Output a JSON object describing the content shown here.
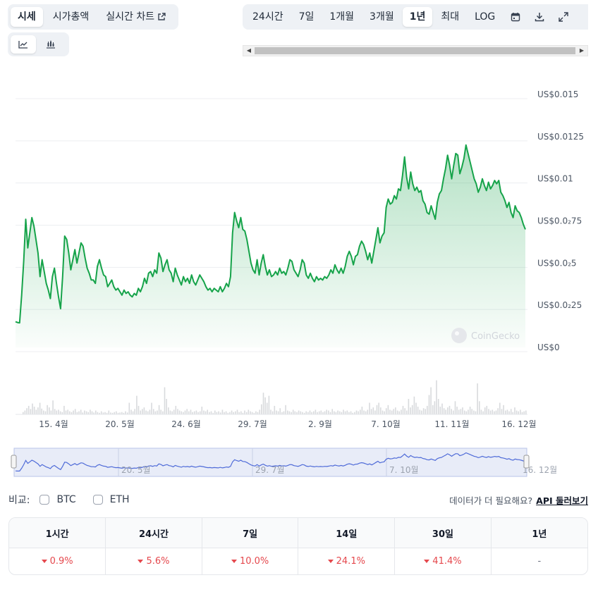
{
  "view_tabs": [
    {
      "label": "시세",
      "active": true
    },
    {
      "label": "시가총액",
      "active": false
    },
    {
      "label": "실시간 차트",
      "active": false,
      "icon": "external-link-icon"
    }
  ],
  "chart_type_buttons": [
    {
      "name": "line-chart-icon",
      "active": true
    },
    {
      "name": "candlestick-chart-icon",
      "active": false
    }
  ],
  "range_tabs": [
    {
      "label": "24시간",
      "active": false
    },
    {
      "label": "7일",
      "active": false
    },
    {
      "label": "1개월",
      "active": false
    },
    {
      "label": "3개월",
      "active": false
    },
    {
      "label": "1년",
      "active": true
    },
    {
      "label": "최대",
      "active": false
    },
    {
      "label": "LOG",
      "active": false
    }
  ],
  "range_icons": [
    "calendar-icon",
    "download-icon",
    "expand-icon"
  ],
  "chart": {
    "watermark": "CoinGecko",
    "line_color": "#16a34a",
    "navigator_color": "#4f6bd8"
  },
  "chart_data": {
    "type": "area",
    "y_axis_labels": [
      "US$0.015",
      "US$0.0125",
      "US$0.01",
      "US$0.0₂75",
      "US$0.0₂5",
      "US$0.0₂25",
      "US$0"
    ],
    "y_ticks": [
      0.015,
      0.0125,
      0.01,
      0.0075,
      0.005,
      0.0025,
      0
    ],
    "ylim": [
      0,
      0.015
    ],
    "x_labels": [
      "15. 4월",
      "20. 5월",
      "24. 6월",
      "29. 7월",
      "2. 9월",
      "7. 10월",
      "11. 11월",
      "16. 12월"
    ],
    "navigator_x_labels": [
      "20. 5월",
      "29. 7월",
      "7. 10월",
      "16. 12월"
    ],
    "price": [
      0.00153,
      0.00148,
      0.00146,
      0.0031,
      0.0051,
      0.0076,
      0.0059,
      0.0068,
      0.0077,
      0.0072,
      0.0064,
      0.0056,
      0.0042,
      0.0052,
      0.0045,
      0.0038,
      0.0034,
      0.0029,
      0.0042,
      0.0047,
      0.0038,
      0.003,
      0.0023,
      0.0042,
      0.0066,
      0.0064,
      0.0056,
      0.0046,
      0.0052,
      0.0058,
      0.005,
      0.0056,
      0.0062,
      0.006,
      0.0053,
      0.0047,
      0.0044,
      0.004,
      0.004,
      0.0038,
      0.0048,
      0.0052,
      0.0047,
      0.0043,
      0.0042,
      0.0036,
      0.0038,
      0.004,
      0.0036,
      0.0034,
      0.0035,
      0.0033,
      0.0031,
      0.0034,
      0.0032,
      0.0033,
      0.0031,
      0.003,
      0.0032,
      0.0031,
      0.0035,
      0.0033,
      0.0036,
      0.0041,
      0.0038,
      0.0044,
      0.0045,
      0.0042,
      0.0046,
      0.0044,
      0.0056,
      0.0053,
      0.0045,
      0.0049,
      0.0052,
      0.0046,
      0.0044,
      0.0039,
      0.0047,
      0.0043,
      0.004,
      0.0037,
      0.0042,
      0.0039,
      0.0041,
      0.0038,
      0.0043,
      0.0039,
      0.0037,
      0.004,
      0.0043,
      0.0041,
      0.0039,
      0.0036,
      0.0034,
      0.0035,
      0.0033,
      0.0035,
      0.0034,
      0.0033,
      0.0036,
      0.0033,
      0.0035,
      0.0038,
      0.0036,
      0.0042,
      0.0068,
      0.008,
      0.0075,
      0.0071,
      0.0077,
      0.007,
      0.0069,
      0.0064,
      0.0057,
      0.005,
      0.0046,
      0.0044,
      0.0052,
      0.0043,
      0.005,
      0.0055,
      0.0048,
      0.0043,
      0.0046,
      0.0042,
      0.0043,
      0.0045,
      0.0043,
      0.0047,
      0.0044,
      0.0045,
      0.0043,
      0.0047,
      0.0052,
      0.0051,
      0.0046,
      0.0044,
      0.0042,
      0.0046,
      0.0052,
      0.005,
      0.0043,
      0.0041,
      0.0044,
      0.0041,
      0.0039,
      0.0042,
      0.004,
      0.0041,
      0.004,
      0.0042,
      0.0041,
      0.0043,
      0.0046,
      0.0044,
      0.0049,
      0.0046,
      0.0044,
      0.0047,
      0.0044,
      0.0048,
      0.0054,
      0.0057,
      0.0054,
      0.0049,
      0.0054,
      0.0055,
      0.006,
      0.0063,
      0.0061,
      0.0057,
      0.0052,
      0.0056,
      0.005,
      0.0057,
      0.0064,
      0.0071,
      0.0062,
      0.0066,
      0.0068,
      0.0083,
      0.0088,
      0.0085,
      0.0086,
      0.009,
      0.0088,
      0.0094,
      0.0093,
      0.0102,
      0.0113,
      0.0101,
      0.0094,
      0.0104,
      0.0097,
      0.0093,
      0.0095,
      0.0092,
      0.0093,
      0.0087,
      0.0085,
      0.008,
      0.0079,
      0.0084,
      0.008,
      0.0076,
      0.0086,
      0.0091,
      0.0093,
      0.01,
      0.0106,
      0.0114,
      0.0108,
      0.01,
      0.0108,
      0.0115,
      0.0114,
      0.0103,
      0.0107,
      0.0112,
      0.012,
      0.0115,
      0.011,
      0.0105,
      0.01,
      0.0097,
      0.0092,
      0.0095,
      0.01,
      0.0096,
      0.0093,
      0.0098,
      0.0094,
      0.0096,
      0.0099,
      0.0097,
      0.0099,
      0.0092,
      0.009,
      0.0087,
      0.0083,
      0.0086,
      0.008,
      0.0077,
      0.0084,
      0.0081,
      0.008,
      0.0077,
      0.0073,
      0.007
    ],
    "volume": [
      0.06,
      0.1,
      0.16,
      0.22,
      0.14,
      0.28,
      0.2,
      0.12,
      0.18,
      0.3,
      0.15,
      0.1,
      0.08,
      0.24,
      0.18,
      0.1,
      0.36,
      0.14,
      0.1,
      0.12,
      0.08,
      0.06,
      0.22,
      0.1,
      0.12,
      0.08,
      0.06,
      0.1,
      0.14,
      0.06,
      0.08,
      0.12,
      0.05,
      0.1,
      0.08,
      0.06,
      0.12,
      0.08,
      0.05,
      0.1,
      0.06,
      0.04,
      0.08,
      0.05,
      0.06,
      0.04,
      0.1,
      0.05,
      0.04,
      0.06,
      0.08,
      0.04,
      0.05,
      0.06,
      0.04,
      0.08,
      0.05,
      0.3,
      0.12,
      0.08,
      0.14,
      0.48,
      0.22,
      0.1,
      0.14,
      0.18,
      0.1,
      0.08,
      0.12,
      0.3,
      0.14,
      0.08,
      0.1,
      0.24,
      0.12,
      0.08,
      0.7,
      0.4,
      0.18,
      0.1,
      0.08,
      0.12,
      0.22,
      0.14,
      0.1,
      0.08,
      0.06,
      0.1,
      0.14,
      0.08,
      0.12,
      0.06,
      0.08,
      0.1,
      0.06,
      0.08,
      0.2,
      0.1,
      0.08,
      0.12,
      0.06,
      0.08,
      0.04,
      0.1,
      0.06,
      0.08,
      0.05,
      0.12,
      0.06,
      0.08,
      0.04,
      0.06,
      0.1,
      0.06,
      0.08,
      0.12,
      0.06,
      0.08,
      0.04,
      0.1,
      0.06,
      0.12,
      0.08,
      0.06,
      0.04,
      0.08,
      0.06,
      0.12,
      0.26,
      0.56,
      0.44,
      0.3,
      0.48,
      0.12,
      0.08,
      0.22,
      0.1,
      0.08,
      0.16,
      0.06,
      0.08,
      0.24,
      0.1,
      0.08,
      0.06,
      0.12,
      0.08,
      0.06,
      0.1,
      0.08,
      0.06,
      0.04,
      0.08,
      0.06,
      0.1,
      0.06,
      0.08,
      0.12,
      0.06,
      0.08,
      0.1,
      0.06,
      0.08,
      0.12,
      0.1,
      0.06,
      0.14,
      0.08,
      0.06,
      0.1,
      0.08,
      0.06,
      0.12,
      0.08,
      0.1,
      0.06,
      0.08,
      0.04,
      0.06,
      0.1,
      0.08,
      0.12,
      0.2,
      0.1,
      0.08,
      0.12,
      0.3,
      0.14,
      0.18,
      0.1,
      0.24,
      0.3,
      0.18,
      0.1,
      0.08,
      0.16,
      0.24,
      0.12,
      0.1,
      0.14,
      0.18,
      0.1,
      0.08,
      0.12,
      0.22,
      0.16,
      0.1,
      0.4,
      0.18,
      0.24,
      0.46,
      0.3,
      0.2,
      0.12,
      0.1,
      0.16,
      0.14,
      0.22,
      0.5,
      0.7,
      0.24,
      0.34,
      0.88,
      0.4,
      0.2,
      0.28,
      0.16,
      0.12,
      0.18,
      0.22,
      0.14,
      0.1,
      0.34,
      0.2,
      0.12,
      0.14,
      0.18,
      0.1,
      0.08,
      0.12,
      0.2,
      0.14,
      0.1,
      0.08,
      0.8,
      0.34,
      0.12,
      0.08,
      0.18,
      0.22,
      0.14,
      0.1,
      0.12,
      0.08,
      0.1,
      0.16,
      0.3,
      0.14,
      0.24,
      0.1,
      0.12,
      0.08,
      0.14,
      0.06,
      0.18,
      0.1,
      0.08,
      0.12,
      0.06,
      0.08,
      0.1
    ]
  },
  "compare": {
    "label": "비교:",
    "options": [
      "BTC",
      "ETH"
    ],
    "more_data_text": "데이터가 더 필요해요?",
    "api_link": "API 둘러보기"
  },
  "performance": {
    "headers": [
      "1시간",
      "24시간",
      "7일",
      "14일",
      "30일",
      "1년"
    ],
    "values": [
      {
        "text": "0.9%",
        "down": true
      },
      {
        "text": "5.6%",
        "down": true
      },
      {
        "text": "10.0%",
        "down": true
      },
      {
        "text": "24.1%",
        "down": true
      },
      {
        "text": "41.4%",
        "down": true
      },
      {
        "text": "-",
        "down": false
      }
    ]
  }
}
